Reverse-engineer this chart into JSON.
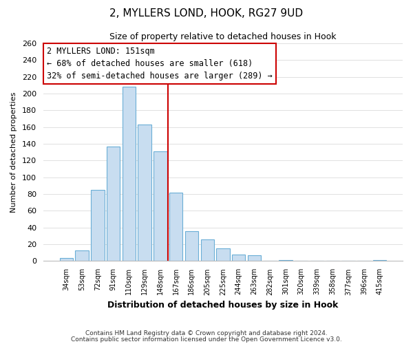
{
  "title": "2, MYLLERS LOND, HOOK, RG27 9UD",
  "subtitle": "Size of property relative to detached houses in Hook",
  "xlabel": "Distribution of detached houses by size in Hook",
  "ylabel": "Number of detached properties",
  "bar_labels": [
    "34sqm",
    "53sqm",
    "72sqm",
    "91sqm",
    "110sqm",
    "129sqm",
    "148sqm",
    "167sqm",
    "186sqm",
    "205sqm",
    "225sqm",
    "244sqm",
    "263sqm",
    "282sqm",
    "301sqm",
    "320sqm",
    "339sqm",
    "358sqm",
    "377sqm",
    "396sqm",
    "415sqm"
  ],
  "bar_values": [
    4,
    13,
    85,
    137,
    208,
    163,
    131,
    82,
    36,
    26,
    15,
    8,
    7,
    0,
    1,
    0,
    0,
    0,
    0,
    0,
    1
  ],
  "bar_color": "#c8ddf0",
  "bar_edge_color": "#6aaed6",
  "vline_color": "#cc0000",
  "annotation_title": "2 MYLLERS LOND: 151sqm",
  "annotation_line1": "← 68% of detached houses are smaller (618)",
  "annotation_line2": "32% of semi-detached houses are larger (289) →",
  "annotation_box_color": "#ffffff",
  "annotation_box_edge": "#cc0000",
  "ylim": [
    0,
    260
  ],
  "yticks": [
    0,
    20,
    40,
    60,
    80,
    100,
    120,
    140,
    160,
    180,
    200,
    220,
    240,
    260
  ],
  "footer1": "Contains HM Land Registry data © Crown copyright and database right 2024.",
  "footer2": "Contains public sector information licensed under the Open Government Licence v3.0.",
  "bg_color": "#ffffff",
  "grid_color": "#e0e0e0"
}
